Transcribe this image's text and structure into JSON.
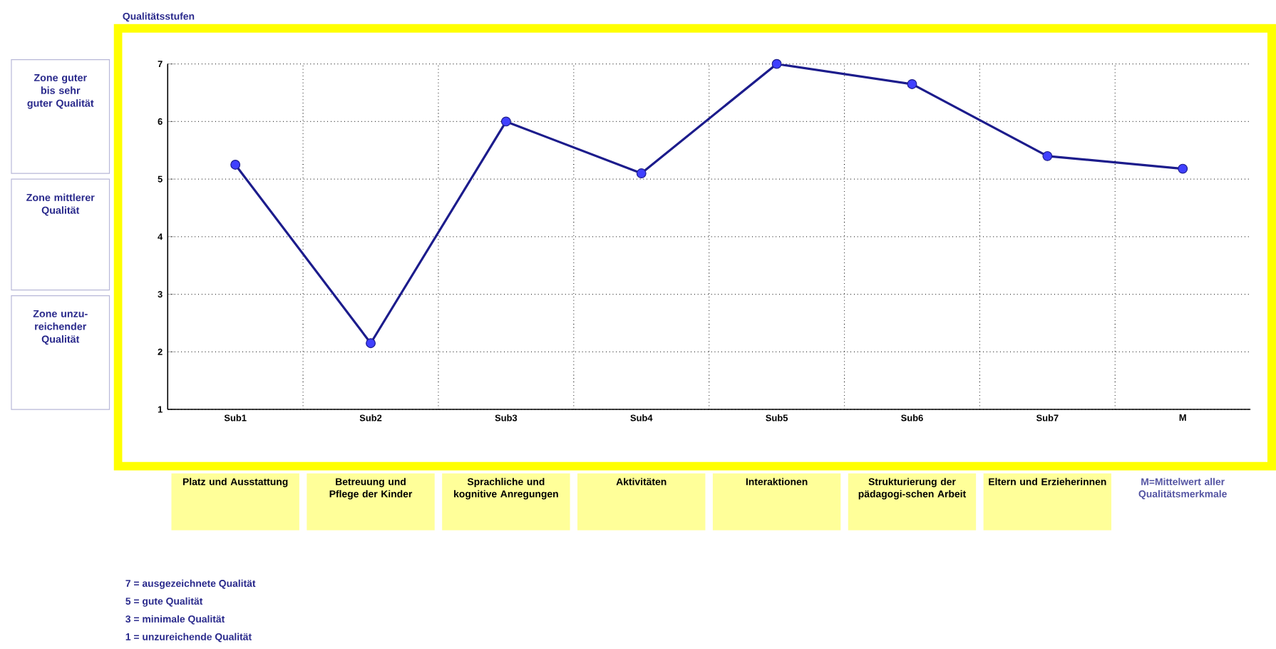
{
  "chart_data": {
    "type": "line",
    "title": "Qualitätsstufen",
    "categories": [
      "Sub1",
      "Sub2",
      "Sub3",
      "Sub4",
      "Sub5",
      "Sub6",
      "Sub7",
      "M"
    ],
    "series": [
      {
        "color": "#1c1c8c",
        "values": [
          5.25,
          2.15,
          6.0,
          5.1,
          7.0,
          6.65,
          5.4,
          5.18
        ]
      }
    ],
    "ylim": [
      1,
      7
    ],
    "yticks": [
      1,
      2,
      3,
      4,
      5,
      6,
      7
    ],
    "grid": true,
    "marker": "circle",
    "line_style": "solid",
    "annotations": [
      "Zone guter bis sehr guter Qualität",
      "Zone mittlerer Qualität",
      "Zone unzu-reichender Qualität",
      "Platz und Ausstattung",
      "Betreuung und Pflege der Kinder",
      "Sprachliche und kognitive Anregungen",
      "Aktivitäten",
      "Interaktionen",
      "Strukturierung der pädagogi-schen Arbeit",
      "Eltern und Erzieherinnen",
      "M=Mittelwert aller Qualitätsmerkmale",
      "7 = ausgezeichnete Qualität",
      "5 = gute Qualität",
      "3 = minimale Qualität",
      "1 = unzureichende Qualität"
    ]
  }
}
